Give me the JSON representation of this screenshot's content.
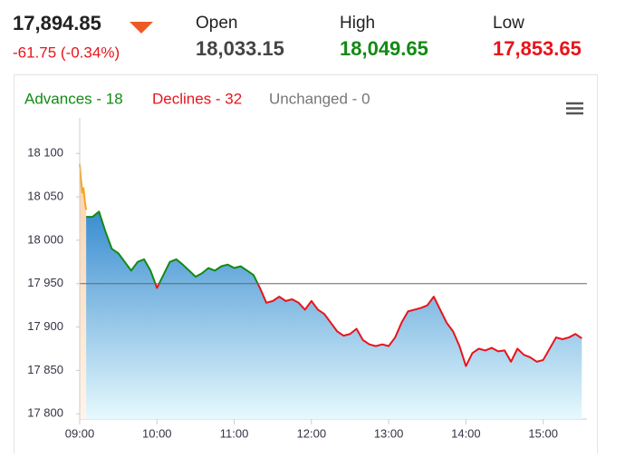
{
  "header": {
    "last": "17,894.85",
    "change": "-61.75 (-0.34%)",
    "open_label": "Open",
    "open": "18,033.15",
    "high_label": "High",
    "high": "18,049.65",
    "low_label": "Low",
    "low": "17,853.65"
  },
  "chart_data": {
    "type": "line",
    "breadth": [
      "Advances - 18",
      "Declines - 32",
      "Unchanged - 0"
    ],
    "baseline": 17950,
    "above_color": "#138a13",
    "below_color": "#e8141b",
    "series": [
      {
        "color": "#f5a623",
        "fill": [
          "#fbd2a8",
          "#fff4ea"
        ],
        "x": [
          540,
          541,
          542,
          543,
          544,
          545
        ],
        "values": [
          18088,
          18070,
          18055,
          18060,
          18045,
          18035
        ]
      },
      {
        "fill": [
          "#3a8dd0",
          "#e6f9fd"
        ],
        "x": [
          545,
          550,
          555,
          560,
          565,
          570,
          575,
          580,
          585,
          590,
          595,
          600,
          605,
          610,
          615,
          620,
          625,
          630,
          635,
          640,
          645,
          650,
          655,
          660,
          665,
          670,
          675,
          680,
          685,
          690,
          695,
          700,
          705,
          710,
          715,
          720,
          725,
          730,
          735,
          740,
          745,
          750,
          755,
          760,
          765,
          770,
          775,
          780,
          785,
          790,
          795,
          800,
          805,
          810,
          815,
          820,
          825,
          830,
          835,
          840,
          845,
          850,
          855,
          860,
          865,
          870,
          875,
          880,
          885,
          890,
          895,
          900,
          905,
          910,
          915,
          920,
          925,
          930
        ],
        "values": [
          18027,
          18027,
          18033,
          18010,
          17990,
          17985,
          17975,
          17965,
          17975,
          17978,
          17965,
          17945,
          17960,
          17975,
          17978,
          17972,
          17965,
          17958,
          17962,
          17968,
          17965,
          17970,
          17972,
          17968,
          17970,
          17965,
          17960,
          17945,
          17928,
          17930,
          17935,
          17930,
          17932,
          17928,
          17920,
          17930,
          17920,
          17915,
          17905,
          17895,
          17890,
          17892,
          17898,
          17885,
          17880,
          17878,
          17880,
          17878,
          17888,
          17905,
          17918,
          17920,
          17922,
          17925,
          17935,
          17920,
          17905,
          17895,
          17878,
          17855,
          17870,
          17875,
          17873,
          17876,
          17872,
          17873,
          17860,
          17875,
          17868,
          17865,
          17860,
          17862,
          17875,
          17888,
          17886,
          17888,
          17892,
          17887
        ]
      }
    ],
    "xlim": [
      540,
      934
    ],
    "xticks": [
      {
        "value": 540,
        "label": "09:00"
      },
      {
        "value": 600,
        "label": "10:00"
      },
      {
        "value": 660,
        "label": "11:00"
      },
      {
        "value": 720,
        "label": "12:00"
      },
      {
        "value": 780,
        "label": "13:00"
      },
      {
        "value": 840,
        "label": "14:00"
      },
      {
        "value": 900,
        "label": "15:00"
      }
    ],
    "ylim": [
      17794,
      18141
    ],
    "yticks": [
      {
        "value": 17800,
        "label": "17 800"
      },
      {
        "value": 17850,
        "label": "17 850"
      },
      {
        "value": 17900,
        "label": "17 900"
      },
      {
        "value": 17950,
        "label": "17 950"
      },
      {
        "value": 18000,
        "label": "18 000"
      },
      {
        "value": 18050,
        "label": "18 050"
      },
      {
        "value": 18100,
        "label": "18 100"
      }
    ]
  }
}
